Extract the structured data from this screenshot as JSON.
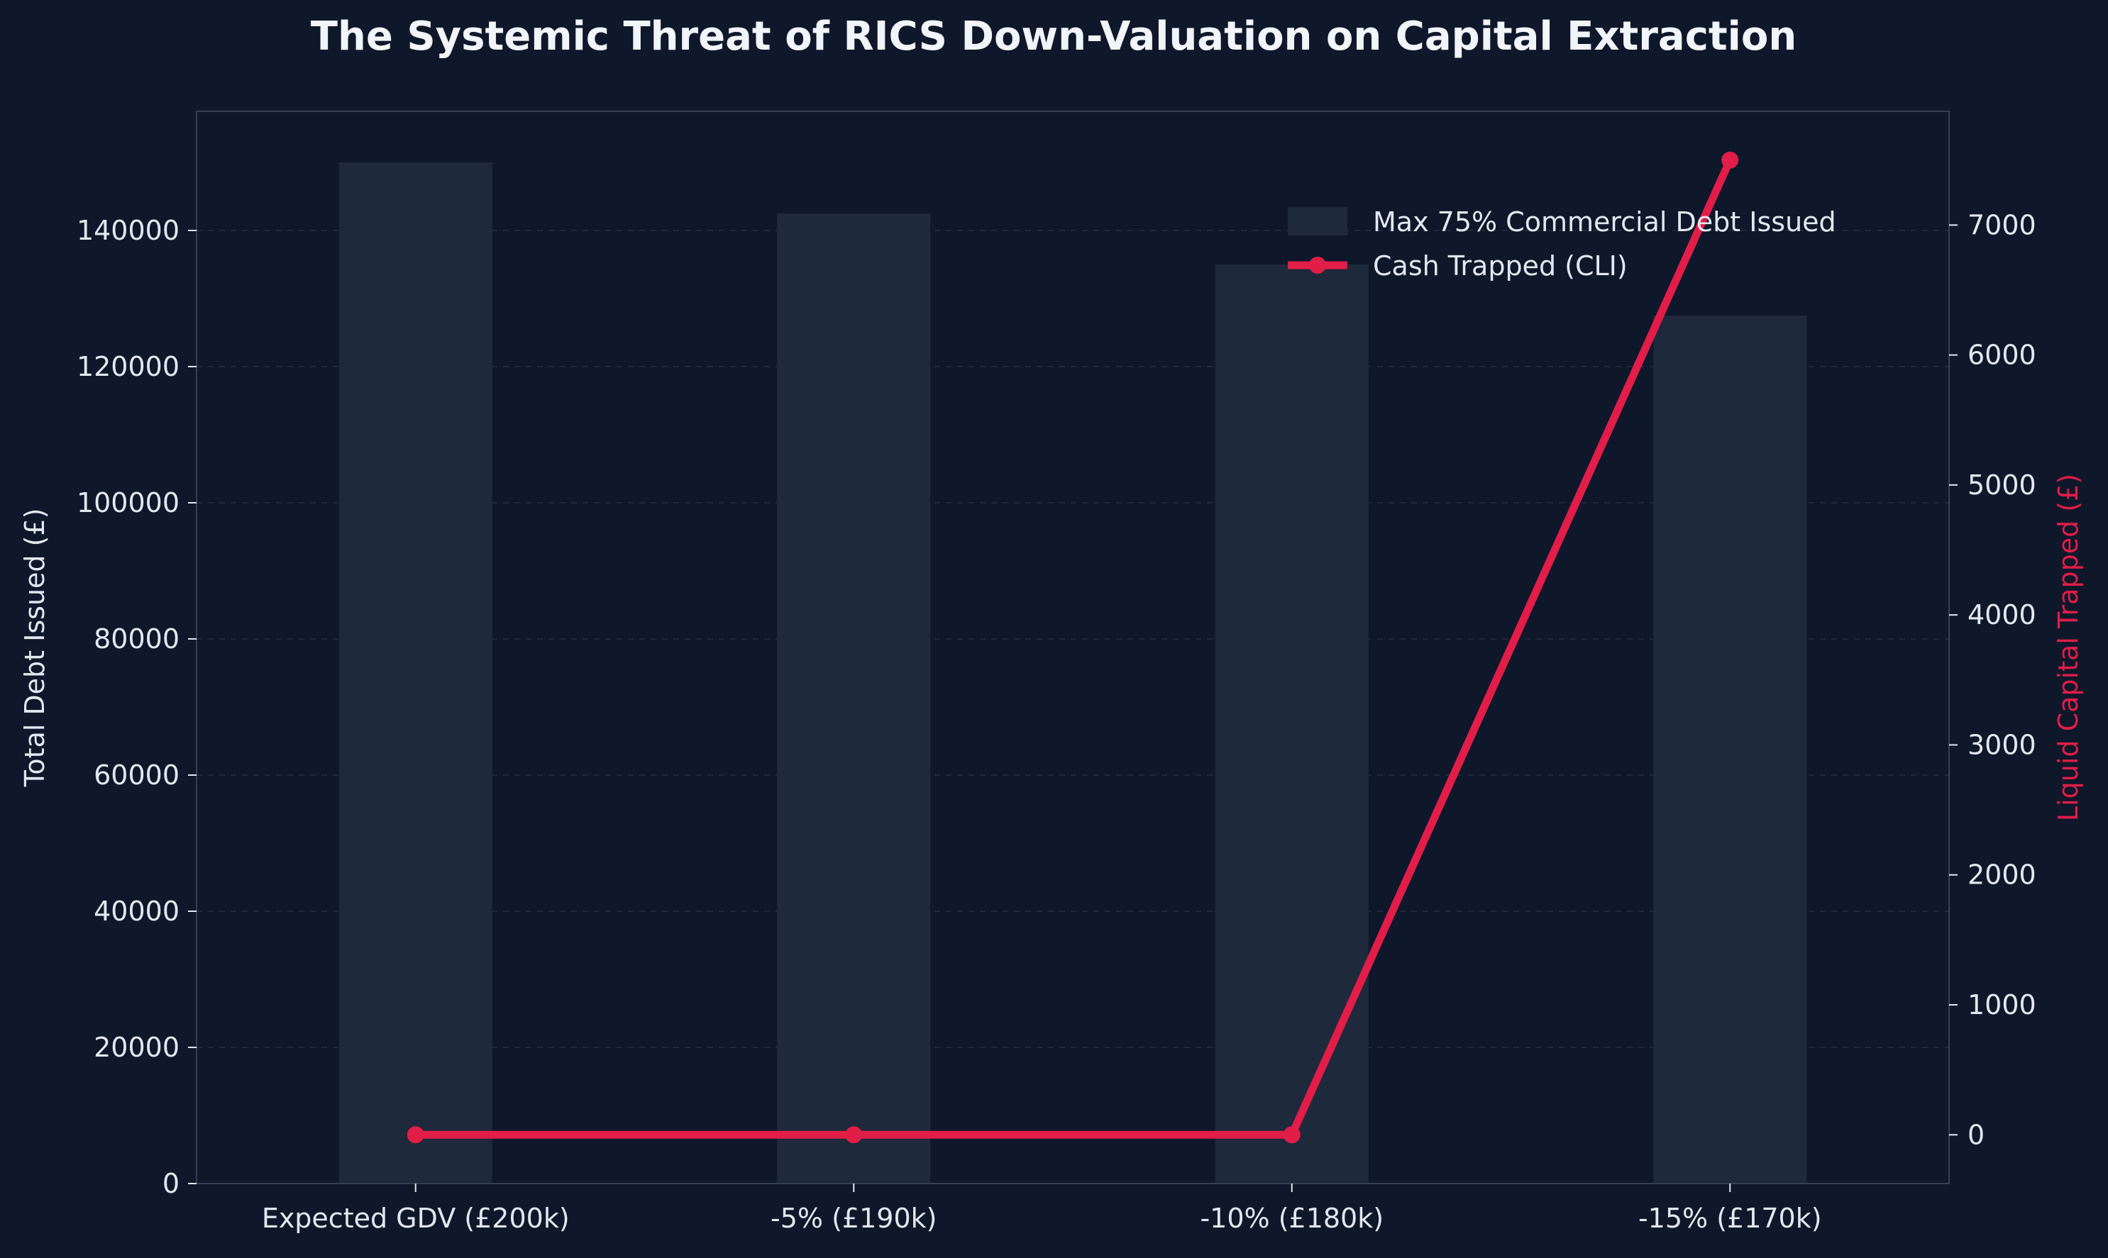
{
  "chart_data": {
    "type": "bar",
    "title": "The Systemic Threat of RICS Down-Valuation on Capital Extraction",
    "categories": [
      "Expected GDV (£200k)",
      "-5% (£190k)",
      "-10% (£180k)",
      "-15% (£170k)"
    ],
    "series": [
      {
        "name": "Max 75% Commercial Debt Issued",
        "type": "bar",
        "axis": "left",
        "values": [
          150000,
          142500,
          135000,
          127500
        ],
        "color": "#1e293b"
      },
      {
        "name": "Cash Trapped (CLI)",
        "type": "line",
        "axis": "right",
        "values": [
          0,
          0,
          0,
          7500
        ],
        "color": "#e11d48"
      }
    ],
    "ylabel": "Total Debt Issued (£)",
    "y2label": "Liquid Capital Trapped (£)",
    "ylim": [
      0,
      157500
    ],
    "y2lim": [
      -375,
      7875
    ],
    "yticks": [
      0,
      20000,
      40000,
      60000,
      80000,
      100000,
      120000,
      140000
    ],
    "y2ticks": [
      0,
      1000,
      2000,
      3000,
      4000,
      5000,
      6000,
      7000
    ],
    "grid": true,
    "legend_position": "top-right",
    "colors": {
      "background": "#0f172a",
      "bar": "#1e293b",
      "line": "#e11d48",
      "text": "#e2e8f0",
      "title": "#f1f5f9",
      "grid": "#1e293b",
      "spine": "#334155",
      "y2label": "#e11d48"
    }
  }
}
